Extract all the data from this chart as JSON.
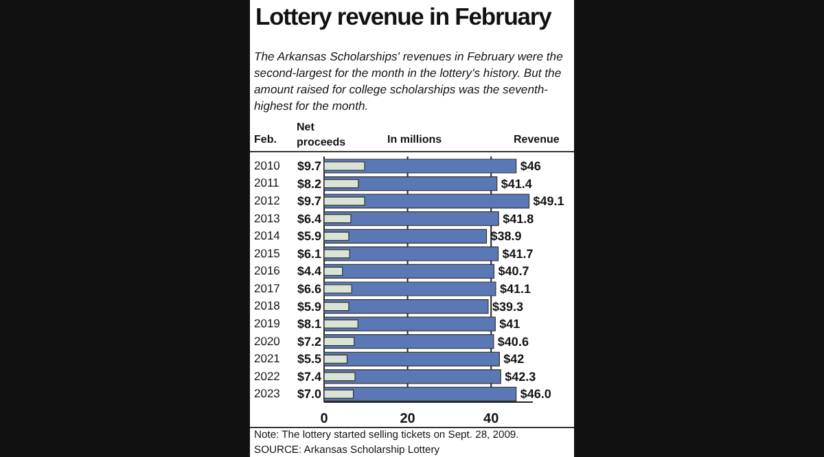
{
  "chart_data": {
    "type": "bar",
    "orientation": "horizontal",
    "title": "Lottery revenue in February",
    "subtitle": "The Arkansas Scholarships' revenues in February were the second-largest for the month in the lottery's history. But the amount raised for college scholarships was the seventh-highest for the month.",
    "ylabel": "Feb.",
    "xlabel": "In millions",
    "categories": [
      "2010",
      "2011",
      "2012",
      "2013",
      "2014",
      "2015",
      "2016",
      "2017",
      "2018",
      "2019",
      "2020",
      "2021",
      "2022",
      "2023"
    ],
    "series": [
      {
        "name": "Net proceeds",
        "color": "#dae4d5",
        "values": [
          9.7,
          8.2,
          9.7,
          6.4,
          5.9,
          6.1,
          4.4,
          6.6,
          5.9,
          8.1,
          7.2,
          5.5,
          7.4,
          7.0
        ],
        "value_labels": [
          "$9.7",
          "$8.2",
          "$9.7",
          "$6.4",
          "$5.9",
          "$6.1",
          "$4.4",
          "$6.6",
          "$5.9",
          "$8.1",
          "$7.2",
          "$5.5",
          "$7.4",
          "$7.0"
        ]
      },
      {
        "name": "Revenue",
        "color": "#5a78b6",
        "values": [
          46,
          41.4,
          49.1,
          41.8,
          38.9,
          41.7,
          40.7,
          41.1,
          39.3,
          41,
          40.6,
          42,
          42.3,
          46.0
        ],
        "value_labels": [
          "$46",
          "$41.4",
          "$49.1",
          "$41.8",
          "$38.9",
          "$41.7",
          "$40.7",
          "$41.1",
          "$39.3",
          "$41",
          "$40.6",
          "$42",
          "$42.3",
          "$46.0"
        ]
      }
    ],
    "xlim": [
      0,
      50
    ],
    "xticks": [
      0,
      20,
      40
    ],
    "grid": "x",
    "legend": false,
    "annotations": [
      "Note: The lottery started selling tickets on Sept. 28, 2009.",
      "SOURCE: Arkansas Scholarship Lottery"
    ]
  }
}
